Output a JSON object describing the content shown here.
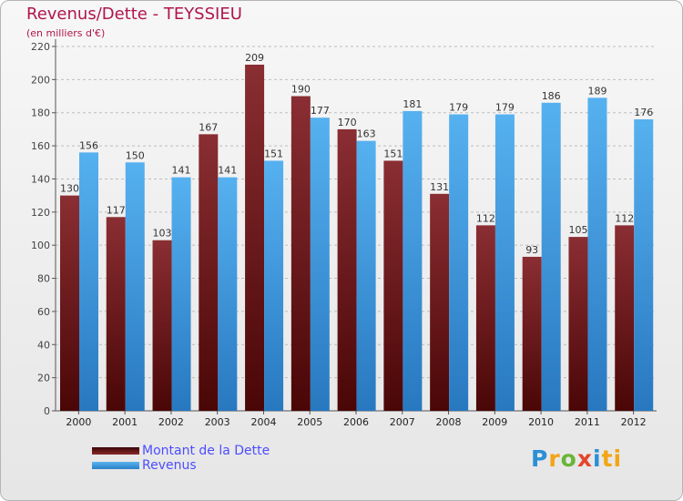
{
  "title": "Revenus/Dette - TEYSSIEU",
  "subtitle": "(en milliers d'€)",
  "logo": [
    "P",
    "r",
    "o",
    "x",
    "i",
    "ti"
  ],
  "colors": {
    "title": "#b0154d",
    "dette": "#7a1f24",
    "revenus": "#3f9fe0",
    "legend_text": "#4d4dff"
  },
  "legend": {
    "items": [
      {
        "label": "Montant de la Dette",
        "color": "#6b0d0d"
      },
      {
        "label": "Revenus",
        "color": "#3f9fe0"
      }
    ]
  },
  "chart_data": {
    "type": "bar",
    "categories": [
      "2000",
      "2001",
      "2002",
      "2003",
      "2004",
      "2005",
      "2006",
      "2007",
      "2008",
      "2009",
      "2010",
      "2011",
      "2012"
    ],
    "series": [
      {
        "name": "Montant de la Dette",
        "values": [
          130,
          117,
          103,
          167,
          209,
          190,
          170,
          151,
          131,
          112,
          93,
          105,
          112
        ]
      },
      {
        "name": "Revenus",
        "values": [
          156,
          150,
          141,
          141,
          151,
          177,
          163,
          181,
          179,
          179,
          186,
          189,
          176
        ]
      }
    ],
    "yticks": [
      0,
      20,
      40,
      60,
      80,
      100,
      120,
      140,
      160,
      180,
      200,
      220
    ],
    "ylim": [
      0,
      220
    ],
    "grid": true,
    "legend_position": "bottom-left"
  }
}
